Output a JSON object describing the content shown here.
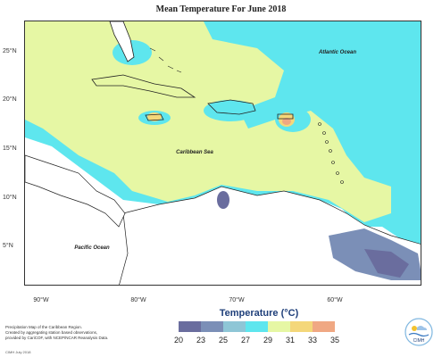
{
  "title": "Mean Temperature For June 2018",
  "map": {
    "labels": {
      "atlantic": "Atlantic Ocean",
      "caribbean": "Caribbean Sea",
      "pacific": "Pacific Ocean"
    },
    "lat_ticks": [
      "25°N",
      "20°N",
      "15°N",
      "10°N",
      "5°N"
    ],
    "lon_ticks": [
      "90°W",
      "80°W",
      "70°W",
      "60°W"
    ]
  },
  "legend": {
    "title": "Temperature (°C)",
    "ticks": [
      "20",
      "23",
      "25",
      "27",
      "29",
      "31",
      "33",
      "35"
    ],
    "colors": [
      "#6a6d9e",
      "#7b8fb7",
      "#8ec6d6",
      "#5ee6ee",
      "#e6f7a4",
      "#f4d77a",
      "#f0a883"
    ]
  },
  "credit": {
    "line1": "Precipitation Map of the Caribbean Region.",
    "line2": "Created by aggregating station based observations,",
    "line3": "provided by CariCOF, with NCEP/NCAR Reanalysis Data.",
    "date": "CIMH July 2018"
  },
  "logo_text": "CIMH"
}
